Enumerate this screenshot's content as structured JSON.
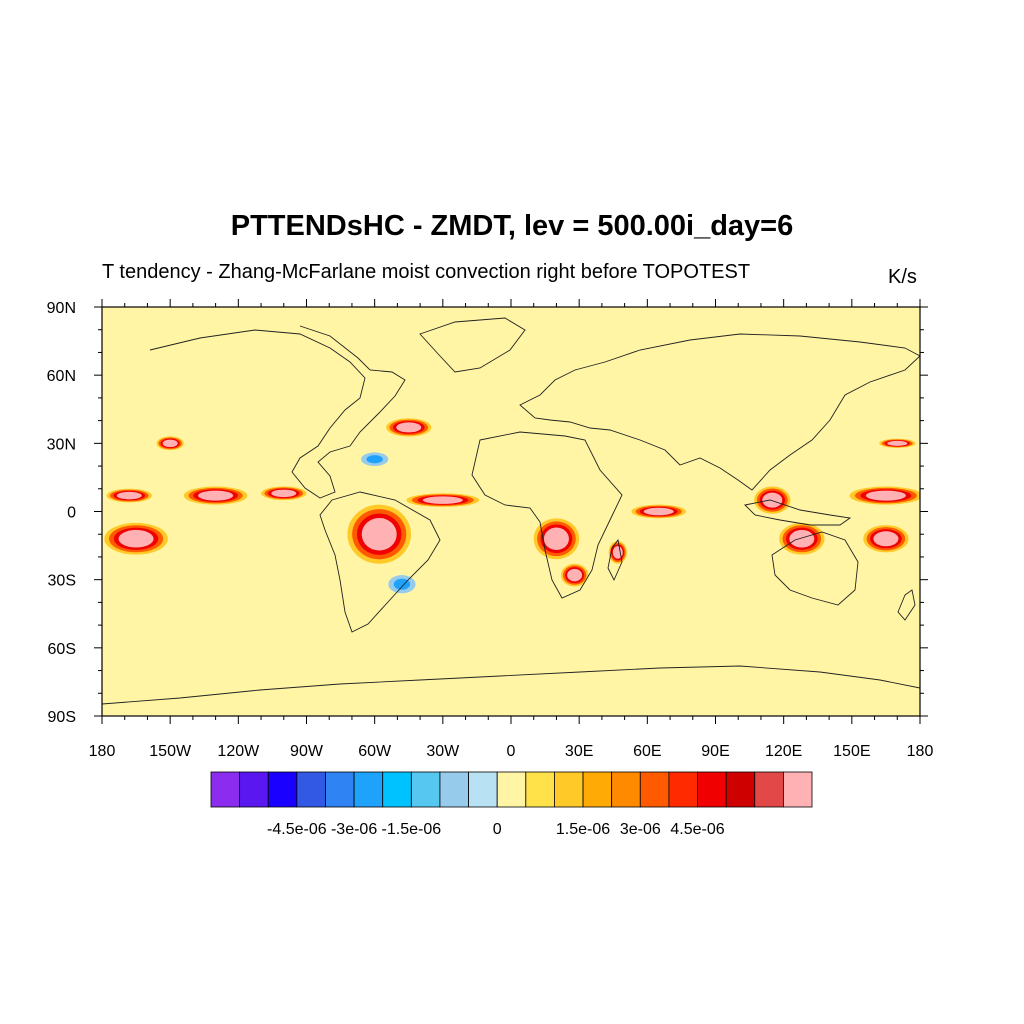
{
  "title": "PTTENDsHC - ZMDT, lev = 500.00i_day=6",
  "subtitle": "T tendency - Zhang-McFarlane moist convection right before TOPOTEST",
  "units": "K/s",
  "map": {
    "projection": "cylindrical equidistant",
    "lon_range": [
      -180,
      180
    ],
    "lat_range": [
      -90,
      90
    ],
    "lon_ticks": [
      {
        "value": -180,
        "label": "180"
      },
      {
        "value": -150,
        "label": "150W"
      },
      {
        "value": -120,
        "label": "120W"
      },
      {
        "value": -90,
        "label": "90W"
      },
      {
        "value": -60,
        "label": "60W"
      },
      {
        "value": -30,
        "label": "30W"
      },
      {
        "value": 0,
        "label": "0"
      },
      {
        "value": 30,
        "label": "30E"
      },
      {
        "value": 60,
        "label": "60E"
      },
      {
        "value": 90,
        "label": "90E"
      },
      {
        "value": 120,
        "label": "120E"
      },
      {
        "value": 150,
        "label": "150E"
      },
      {
        "value": 180,
        "label": "180"
      }
    ],
    "lat_ticks": [
      {
        "value": 90,
        "label": "90N"
      },
      {
        "value": 60,
        "label": "60N"
      },
      {
        "value": 30,
        "label": "30N"
      },
      {
        "value": 0,
        "label": "0"
      },
      {
        "value": -30,
        "label": "30S"
      },
      {
        "value": -60,
        "label": "60S"
      },
      {
        "value": -90,
        "label": "90S"
      }
    ],
    "background_color": "#fff5a5"
  },
  "colorbar": {
    "colors": [
      "#8c2cef",
      "#5b17f0",
      "#1a00ff",
      "#3159e4",
      "#2f83f3",
      "#1fa2fb",
      "#00c2ff",
      "#55c7f0",
      "#96cbec",
      "#b8e2f4",
      "#fff5a5",
      "#ffe24a",
      "#ffc928",
      "#ffaa05",
      "#ff8a00",
      "#ff5a00",
      "#ff2a00",
      "#f00000",
      "#cf0000",
      "#e24848",
      "#ffb1b4"
    ],
    "labels": [
      {
        "after_box": 2,
        "text": "-4.5e-06"
      },
      {
        "after_box": 4,
        "text": "-3e-06"
      },
      {
        "after_box": 6,
        "text": "-1.5e-06"
      },
      {
        "after_box": 9,
        "text": "0"
      },
      {
        "after_box": 12,
        "text": "1.5e-06"
      },
      {
        "after_box": 14,
        "text": "3e-06"
      },
      {
        "after_box": 16,
        "text": "4.5e-06"
      }
    ]
  },
  "features": [
    {
      "name": "itcz-pacific-west",
      "lon": -168,
      "lat": 7,
      "rx": 10,
      "ry": 3,
      "level": "high"
    },
    {
      "name": "itcz-pacific-central",
      "lon": -130,
      "lat": 7,
      "rx": 14,
      "ry": 4,
      "level": "high"
    },
    {
      "name": "itcz-pacific-east",
      "lon": -100,
      "lat": 8,
      "rx": 10,
      "ry": 3,
      "level": "high"
    },
    {
      "name": "spcz-east",
      "lon": -165,
      "lat": -12,
      "rx": 14,
      "ry": 7,
      "level": "high"
    },
    {
      "name": "hawaii-band",
      "lon": -150,
      "lat": 30,
      "rx": 6,
      "ry": 3,
      "level": "high"
    },
    {
      "name": "north-atlantic-storm",
      "lon": -45,
      "lat": 37,
      "rx": 10,
      "ry": 4,
      "level": "high"
    },
    {
      "name": "gulf-stream-cold",
      "lon": -60,
      "lat": 23,
      "rx": 6,
      "ry": 3,
      "level": "low"
    },
    {
      "name": "amazon",
      "lon": -58,
      "lat": -10,
      "rx": 14,
      "ry": 13,
      "level": "high"
    },
    {
      "name": "itcz-atlantic",
      "lon": -30,
      "lat": 5,
      "rx": 16,
      "ry": 3,
      "level": "high"
    },
    {
      "name": "congo",
      "lon": 20,
      "lat": -12,
      "rx": 10,
      "ry": 9,
      "level": "high"
    },
    {
      "name": "south-africa",
      "lon": 28,
      "lat": -28,
      "rx": 6,
      "ry": 5,
      "level": "high"
    },
    {
      "name": "madagascar",
      "lon": 47,
      "lat": -18,
      "rx": 4,
      "ry": 5,
      "level": "high"
    },
    {
      "name": "itcz-indian",
      "lon": 65,
      "lat": 0,
      "rx": 12,
      "ry": 3,
      "level": "high"
    },
    {
      "name": "maritime-continent",
      "lon": 115,
      "lat": 5,
      "rx": 8,
      "ry": 6,
      "level": "high"
    },
    {
      "name": "indonesia-south",
      "lon": 128,
      "lat": -12,
      "rx": 10,
      "ry": 7,
      "level": "high"
    },
    {
      "name": "warm-pool",
      "lon": 165,
      "lat": 7,
      "rx": 16,
      "ry": 4,
      "level": "high"
    },
    {
      "name": "spcz-west",
      "lon": 165,
      "lat": -12,
      "rx": 10,
      "ry": 6,
      "level": "high"
    },
    {
      "name": "north-pacific-band",
      "lon": 170,
      "lat": 30,
      "rx": 8,
      "ry": 2,
      "level": "high"
    },
    {
      "name": "south-atlantic-cold",
      "lon": -48,
      "lat": -32,
      "rx": 6,
      "ry": 4,
      "level": "low"
    }
  ]
}
